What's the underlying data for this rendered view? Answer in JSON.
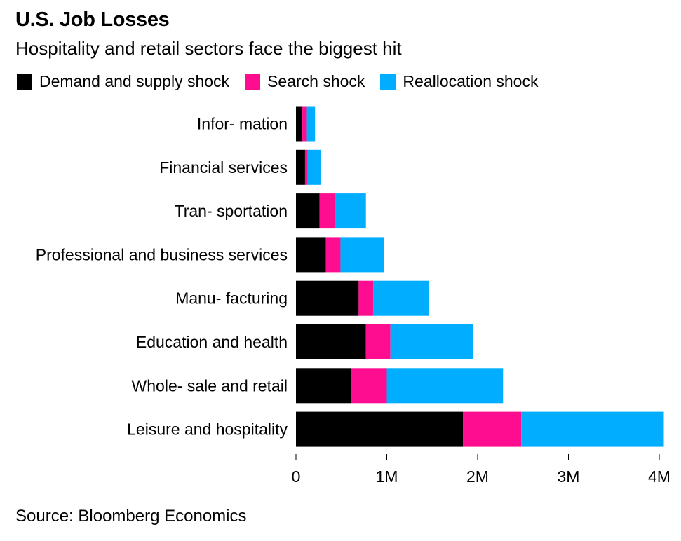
{
  "header": {
    "title": "U.S. Job Losses",
    "subtitle": "Hospitality and retail sectors face the biggest hit"
  },
  "legend": [
    {
      "label": "Demand and supply shock",
      "color": "#000000"
    },
    {
      "label": "Search shock",
      "color": "#ff0d91"
    },
    {
      "label": "Reallocation shock",
      "color": "#00adff"
    }
  ],
  "source": "Source: Bloomberg Economics",
  "chart_data": {
    "type": "bar",
    "orientation": "horizontal",
    "stacked": true,
    "title": "U.S. Job Losses",
    "subtitle": "Hospitality and retail sectors face the biggest hit",
    "categories": [
      "Infor- mation",
      "Financial services",
      "Tran- sportation",
      "Professional and business services",
      "Manu- facturing",
      "Education and health",
      "Whole- sale and retail",
      "Leisure and hospitality"
    ],
    "series": [
      {
        "name": "Demand and supply shock",
        "color": "#000000",
        "values": [
          70000,
          100000,
          260000,
          330000,
          690000,
          770000,
          610000,
          1840000
        ]
      },
      {
        "name": "Search shock",
        "color": "#ff0d91",
        "values": [
          50000,
          30000,
          170000,
          160000,
          160000,
          270000,
          390000,
          640000
        ]
      },
      {
        "name": "Reallocation shock",
        "color": "#00adff",
        "values": [
          90000,
          140000,
          340000,
          480000,
          610000,
          910000,
          1280000,
          1570000
        ]
      }
    ],
    "xlim": [
      0,
      4000000
    ],
    "xticks": [
      0,
      1000000,
      2000000,
      3000000,
      4000000
    ],
    "xtick_labels": [
      "0",
      "1M",
      "2M",
      "3M",
      "4M"
    ],
    "xlabel": "",
    "ylabel": "",
    "grid": false
  }
}
